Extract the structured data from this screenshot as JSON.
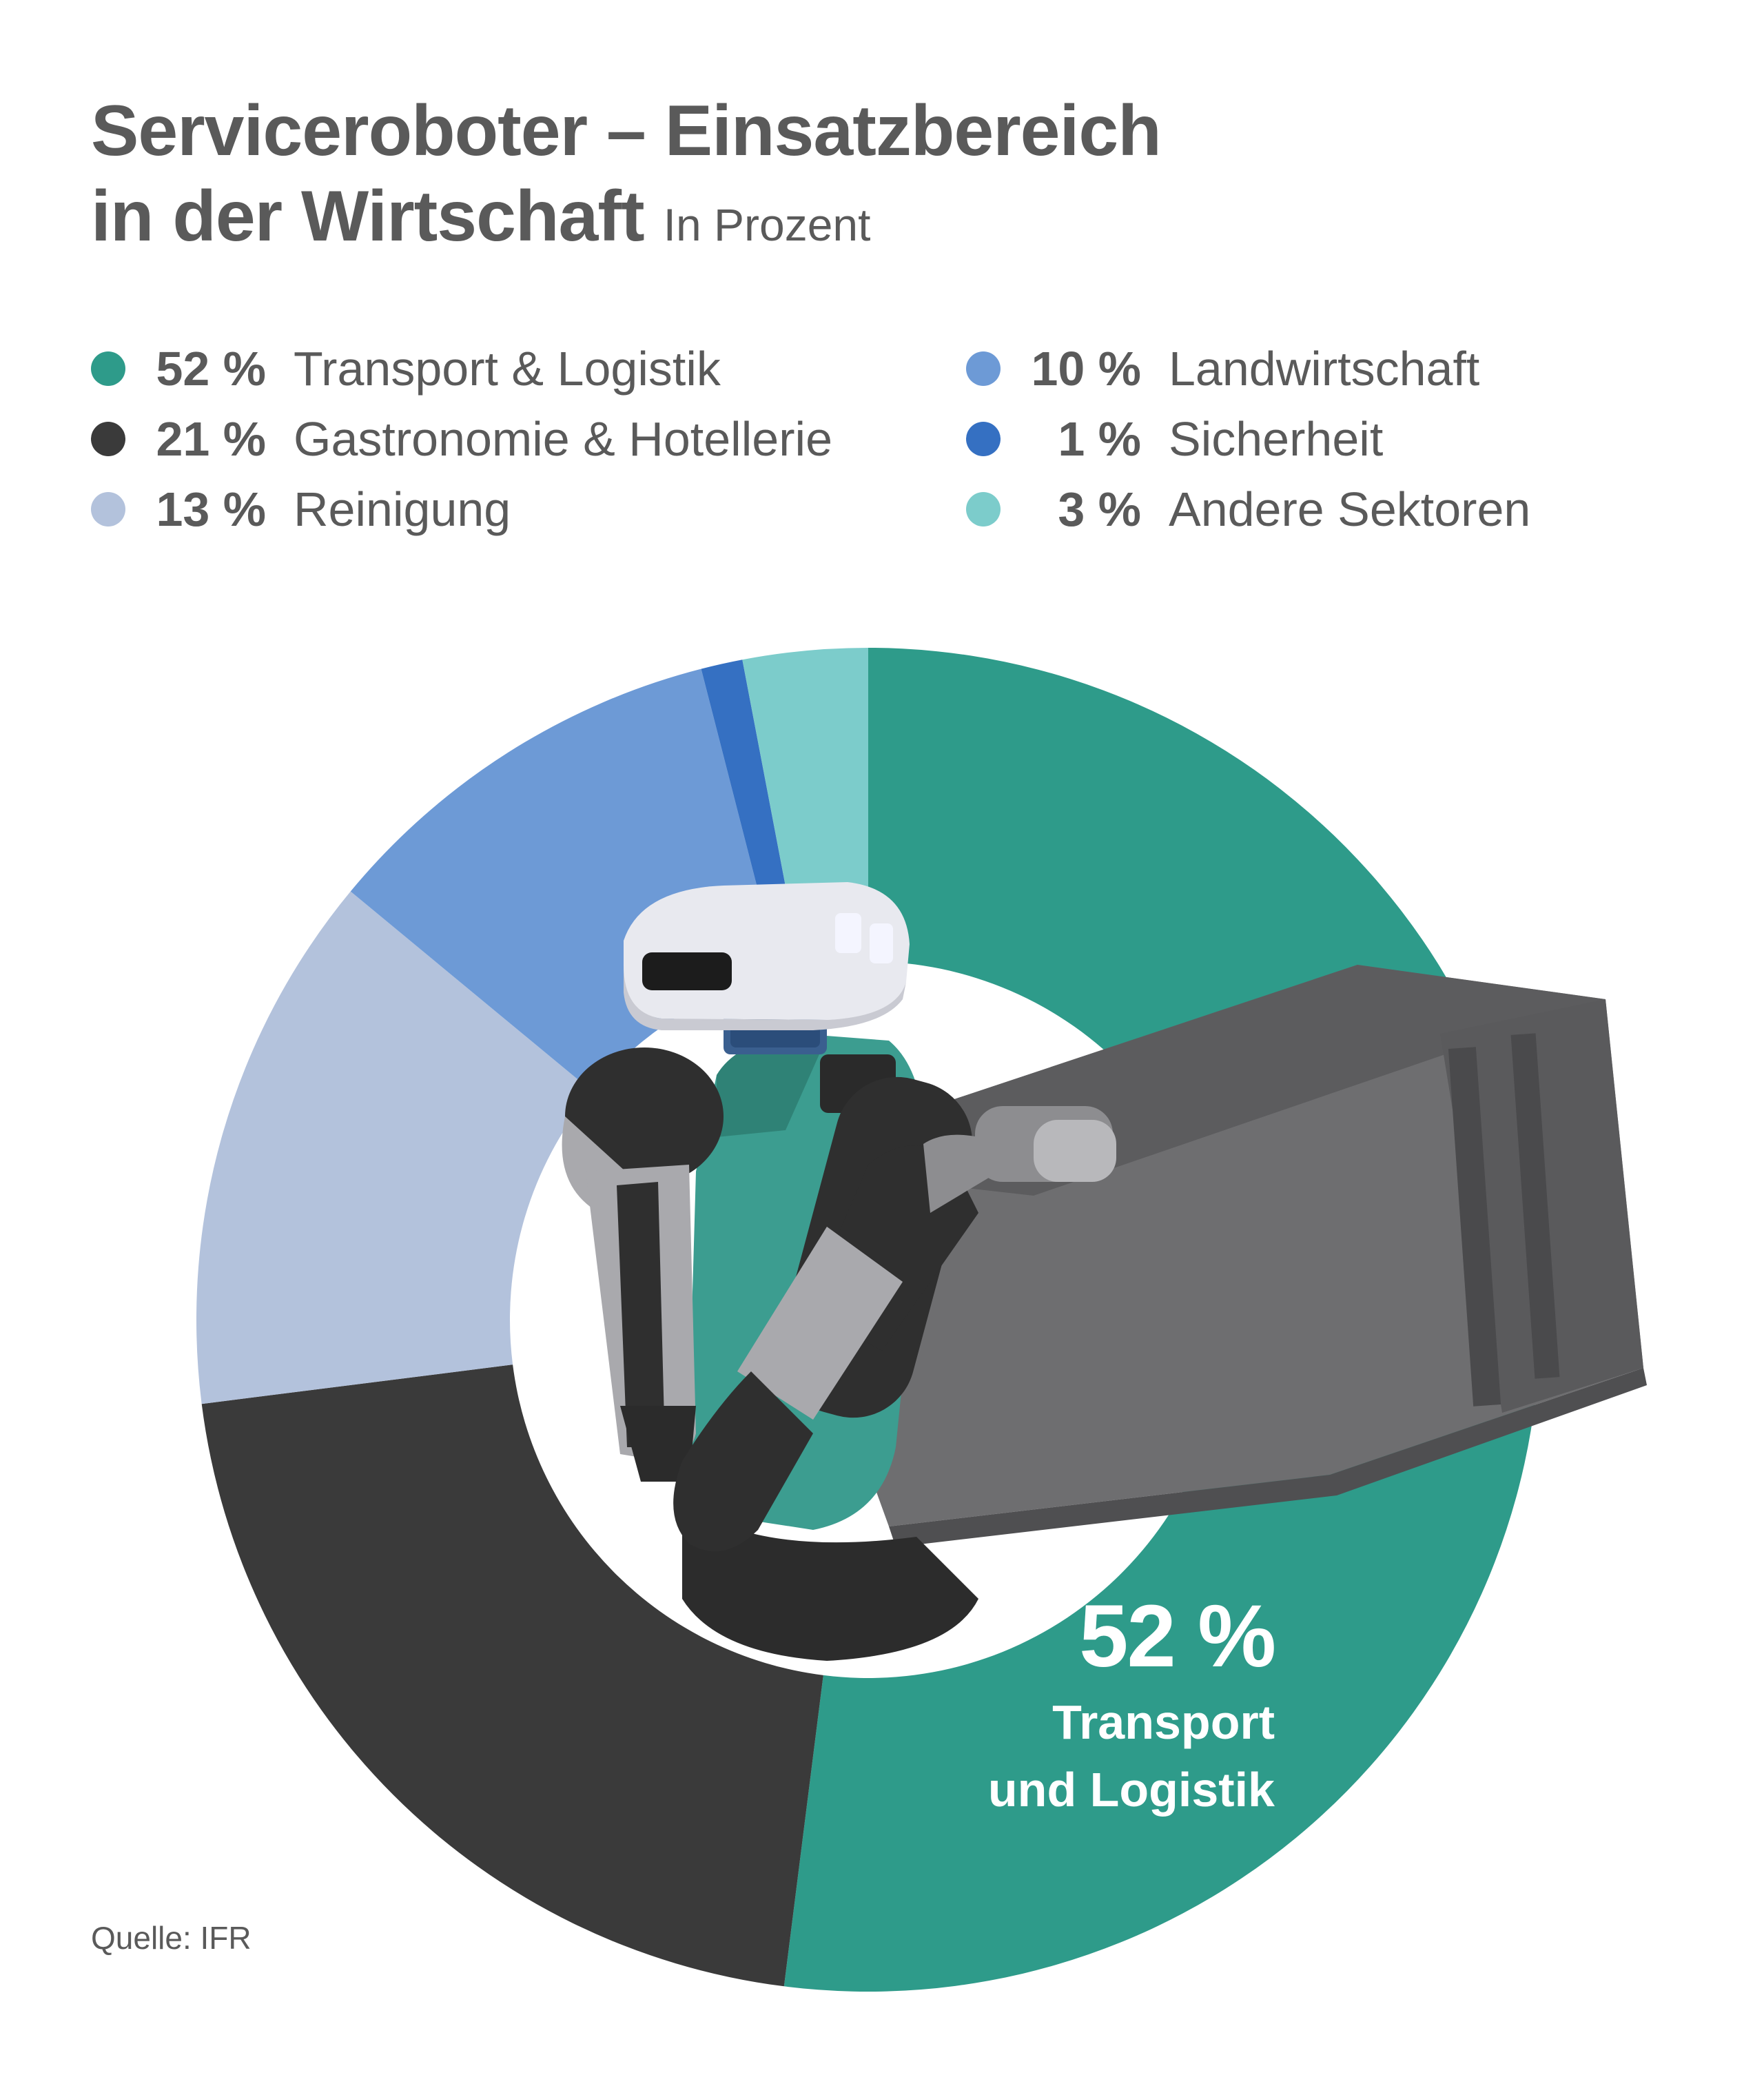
{
  "title_line1": "Serviceroboter – Einsatzbereich",
  "title_line2": "in der Wirtschaft",
  "title_unit": "In Prozent",
  "source": "Quelle: IFR",
  "callout": {
    "pct": "52 %",
    "line1": "Transport",
    "line2": "und Logistik"
  },
  "legend": [
    {
      "pct": "52 %",
      "label": "Transport & Logistik",
      "color": "#2e9b8a"
    },
    {
      "pct": "21 %",
      "label": "Gastronomie & Hotellerie",
      "color": "#3a3a3a"
    },
    {
      "pct": "13 %",
      "label": "Reinigung",
      "color": "#b3c2dc"
    },
    {
      "pct": "10 %",
      "label": "Landwirtschaft",
      "color": "#6d9ad6"
    },
    {
      "pct": "1 %",
      "label": "Sicherheit",
      "color": "#3570c2"
    },
    {
      "pct": "3 %",
      "label": "Andere Sektoren",
      "color": "#7ccccb"
    }
  ],
  "chart_data": {
    "type": "pie",
    "title": "Serviceroboter – Einsatzbereich in der Wirtschaft",
    "unit": "In Prozent",
    "categories": [
      "Transport & Logistik",
      "Gastronomie & Hotellerie",
      "Reinigung",
      "Landwirtschaft",
      "Sicherheit",
      "Andere Sektoren"
    ],
    "values": [
      52,
      21,
      13,
      10,
      1,
      3
    ],
    "colors": [
      "#2e9b8a",
      "#3a3a3a",
      "#b3c2dc",
      "#6d9ad6",
      "#3570c2",
      "#7ccccb"
    ],
    "donut": true,
    "legend": "top"
  },
  "image": {
    "description_icon": "robot-carrying-crate-image",
    "colors": {
      "body": "#3c9d90",
      "head": "#e8e9ef",
      "arm_dark": "#2f2f2f",
      "arm_light": "#a9a9ad",
      "crate": "#6e6e70",
      "crate_dark": "#4f4f51",
      "visor": "#1c1c1c",
      "light": "#f4f5ff"
    }
  }
}
